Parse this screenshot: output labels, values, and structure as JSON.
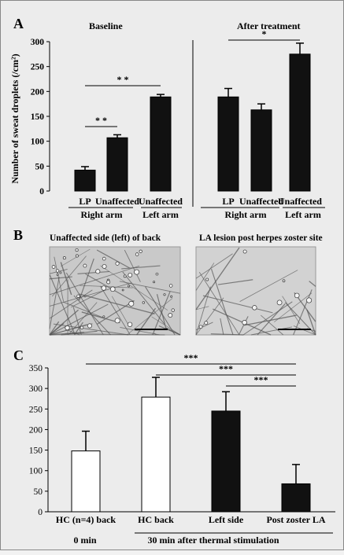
{
  "panels": {
    "A": {
      "label": "A",
      "ylabel": "Number of sweat droplets (/cm²)",
      "subtitles": [
        "Baseline",
        "After treatment"
      ],
      "arm_labels": [
        "Right arm",
        "Left arm",
        "Right arm",
        "Left arm"
      ]
    },
    "B": {
      "label": "B",
      "captions": [
        "Unaffected side (left) of back",
        "LA lesion post herpes zoster site"
      ]
    },
    "C": {
      "label": "C",
      "time_labels": [
        "0 min",
        "30 min after thermal stimulation"
      ]
    }
  },
  "colors": {
    "bar_dark": "#111111",
    "bar_light": "#ffffff",
    "background": "#ececec"
  },
  "chart_data": [
    {
      "type": "bar",
      "panel": "A",
      "title": "Baseline",
      "categories": [
        "LP",
        "Unaffected",
        "Unaffected"
      ],
      "values": [
        42,
        107,
        189
      ],
      "errors": [
        7,
        6,
        5
      ],
      "ylabel": "Number of sweat droplets (/cm²)",
      "ylim": [
        0,
        300
      ],
      "yticks": [
        0,
        50,
        100,
        150,
        200,
        250,
        300
      ],
      "significance": [
        {
          "from": 0,
          "to": 1,
          "label": "* *"
        },
        {
          "from": 0,
          "to": 2,
          "label": "* *"
        }
      ]
    },
    {
      "type": "bar",
      "panel": "A",
      "title": "After treatment",
      "categories": [
        "LP",
        "Unaffected",
        "Unaffected"
      ],
      "values": [
        189,
        163,
        275
      ],
      "errors": [
        17,
        12,
        22
      ],
      "ylim": [
        0,
        300
      ],
      "significance": [
        {
          "from": 0,
          "to": 2,
          "label": "*"
        }
      ]
    },
    {
      "type": "bar",
      "panel": "C",
      "categories": [
        "HC (n=4) back",
        "HC back",
        "Left side",
        "Post zoster LA"
      ],
      "values": [
        148,
        279,
        245,
        68
      ],
      "errors": [
        48,
        48,
        47,
        47
      ],
      "fills": [
        "white",
        "white",
        "black",
        "black"
      ],
      "ylim": [
        0,
        350
      ],
      "yticks": [
        0,
        50,
        100,
        150,
        200,
        250,
        300,
        350
      ],
      "significance": [
        {
          "from": 0,
          "to": 3,
          "label": "***"
        },
        {
          "from": 1,
          "to": 3,
          "label": "***"
        },
        {
          "from": 2,
          "to": 3,
          "label": "***"
        }
      ]
    }
  ]
}
